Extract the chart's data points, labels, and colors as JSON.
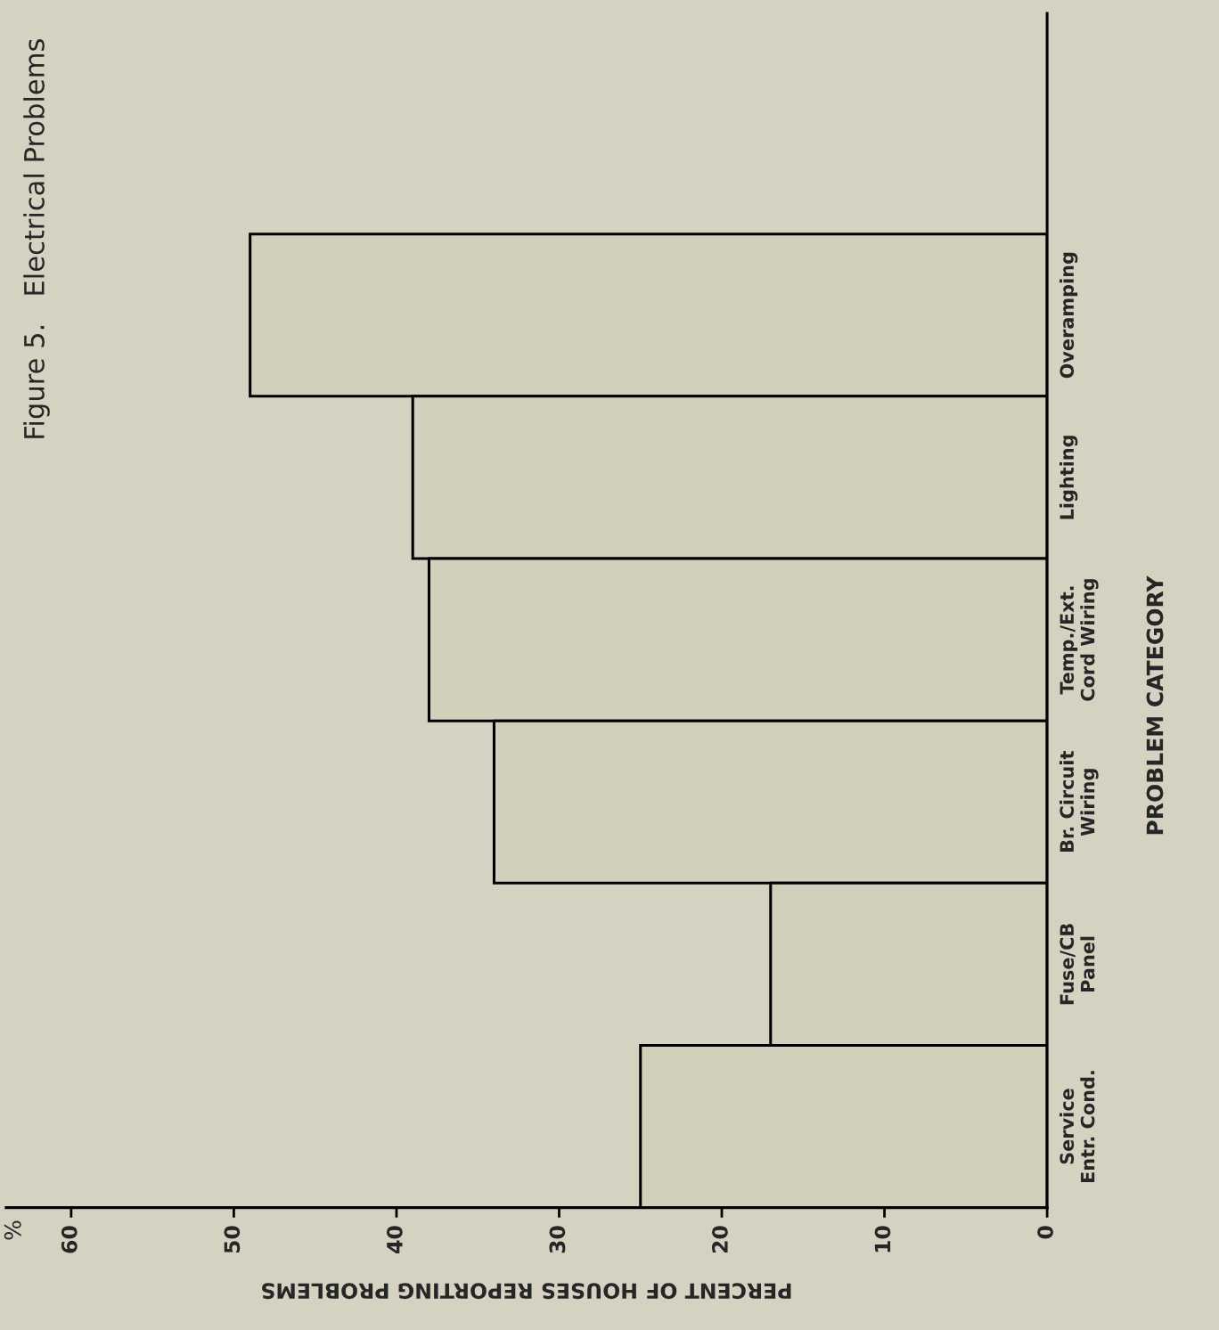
{
  "chart_data": {
    "type": "bar",
    "orientation": "horizontal",
    "title": "Figure 5.   Electrical Problems",
    "xlabel": "PERCENT OF HOUSES REPORTING PROBLEMS",
    "ylabel": "PROBLEM CATEGORY",
    "annotations": [
      "%"
    ],
    "categories": [
      "Overamping",
      "Lighting",
      "Temp./Ext.\nCord Wiring",
      "Br. Circuit\nWiring",
      "Fuse/CB\nPanel",
      "Service\nEntr. Cond."
    ],
    "values": [
      49,
      39,
      38,
      34,
      17,
      25
    ],
    "color": "#d3cfbd",
    "xlim": [
      64,
      0
    ],
    "xticks": [
      0,
      10,
      20,
      30,
      40,
      50,
      60
    ],
    "grid": false,
    "legend": false
  }
}
